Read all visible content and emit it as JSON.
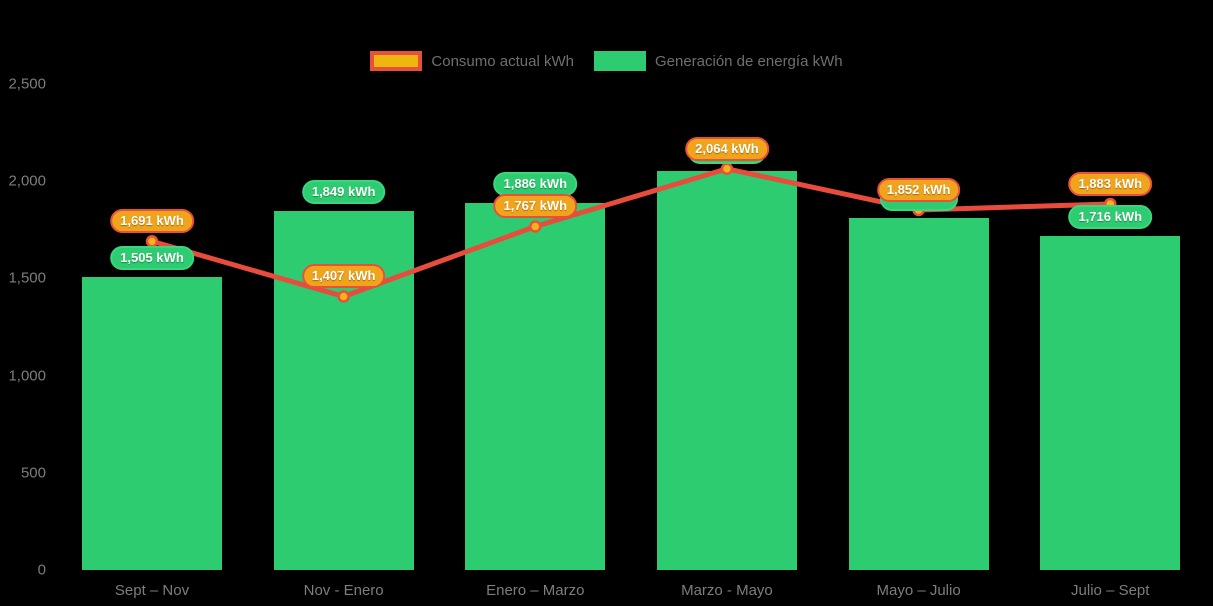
{
  "legend": {
    "consumo_label": "Consumo actual kWh",
    "generacion_label": "Generación de energía kWh"
  },
  "chart_data": {
    "type": "bar+line",
    "categories": [
      "Sept – Nov",
      "Nov - Enero",
      "Enero – Marzo",
      "Marzo - Mayo",
      "Mayo – Julio",
      "Julio – Sept"
    ],
    "series": [
      {
        "name": "Generación de energía kWh",
        "type": "bar",
        "color": "#2ECC71",
        "values": [
          1505,
          1849,
          1886,
          2052,
          1810,
          1716
        ],
        "labels": [
          "1,505 kWh",
          "1,849 kWh",
          "1,886 kWh",
          null,
          null,
          "1,716 kWh"
        ],
        "label_hidden_behind_line_label": [
          false,
          false,
          false,
          true,
          true,
          false
        ]
      },
      {
        "name": "Consumo actual kWh",
        "type": "line",
        "color": "#E74C3C",
        "marker_fill": "#F7B218",
        "marker_stroke": "#E8503C",
        "values": [
          1691,
          1407,
          1767,
          2064,
          1852,
          1883
        ],
        "labels": [
          "1,691 kWh",
          "1,407 kWh",
          "1,767 kWh",
          "2,064 kWh",
          "1,852 kWh",
          "1,883 kWh"
        ]
      }
    ],
    "yticks": {
      "values": [
        0,
        500,
        1000,
        1500,
        2000,
        2500
      ],
      "labels": [
        "0",
        "500",
        "1,000",
        "1,500",
        "2,000",
        "2,500"
      ]
    },
    "ylim": [
      0,
      2500
    ],
    "title": "",
    "xlabel": "",
    "ylabel": "",
    "grid": false,
    "legend_position": "top-center",
    "background": "#000000",
    "pill_colors": {
      "consumo_fill": "#F0A41C",
      "consumo_border": "#E8503C",
      "generacion_fill": "#2ECC71",
      "generacion_border": "#3BD67F"
    }
  }
}
